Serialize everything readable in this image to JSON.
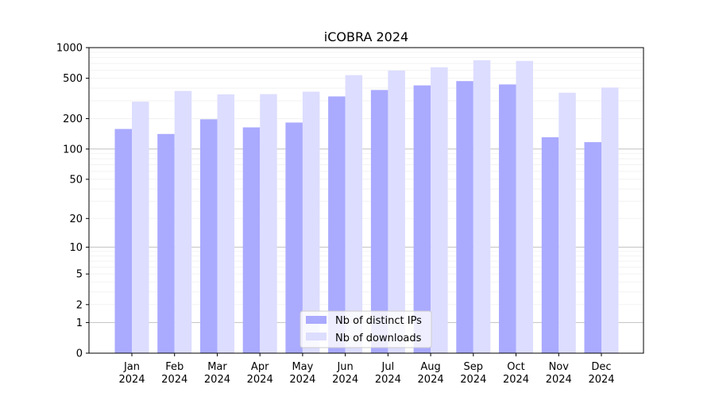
{
  "chart_data": {
    "type": "bar",
    "title": "iCOBRA 2024",
    "xlabel": "",
    "ylabel": "",
    "yscale": "log1p",
    "ylim": [
      0,
      1000
    ],
    "ytick_values": [
      0,
      1,
      2,
      5,
      10,
      20,
      50,
      100,
      200,
      500,
      1000
    ],
    "ytick_labels": [
      "0",
      "1",
      "2",
      "5",
      "10",
      "20",
      "50",
      "100",
      "200",
      "500",
      "1000"
    ],
    "grid": true,
    "legend_position": "bottom-center",
    "categories": [
      [
        "Jan",
        "2024"
      ],
      [
        "Feb",
        "2024"
      ],
      [
        "Mar",
        "2024"
      ],
      [
        "Apr",
        "2024"
      ],
      [
        "May",
        "2024"
      ],
      [
        "Jun",
        "2024"
      ],
      [
        "Jul",
        "2024"
      ],
      [
        "Aug",
        "2024"
      ],
      [
        "Sep",
        "2024"
      ],
      [
        "Oct",
        "2024"
      ],
      [
        "Nov",
        "2024"
      ],
      [
        "Dec",
        "2024"
      ]
    ],
    "series": [
      {
        "name": "Nb of distinct IPs",
        "color": "#aaaaff",
        "values": [
          158,
          141,
          197,
          164,
          183,
          331,
          383,
          425,
          468,
          434,
          131,
          117
        ]
      },
      {
        "name": "Nb of downloads",
        "color": "#ddddff",
        "values": [
          294,
          375,
          347,
          349,
          369,
          536,
          595,
          641,
          751,
          739,
          360,
          405
        ]
      }
    ]
  }
}
